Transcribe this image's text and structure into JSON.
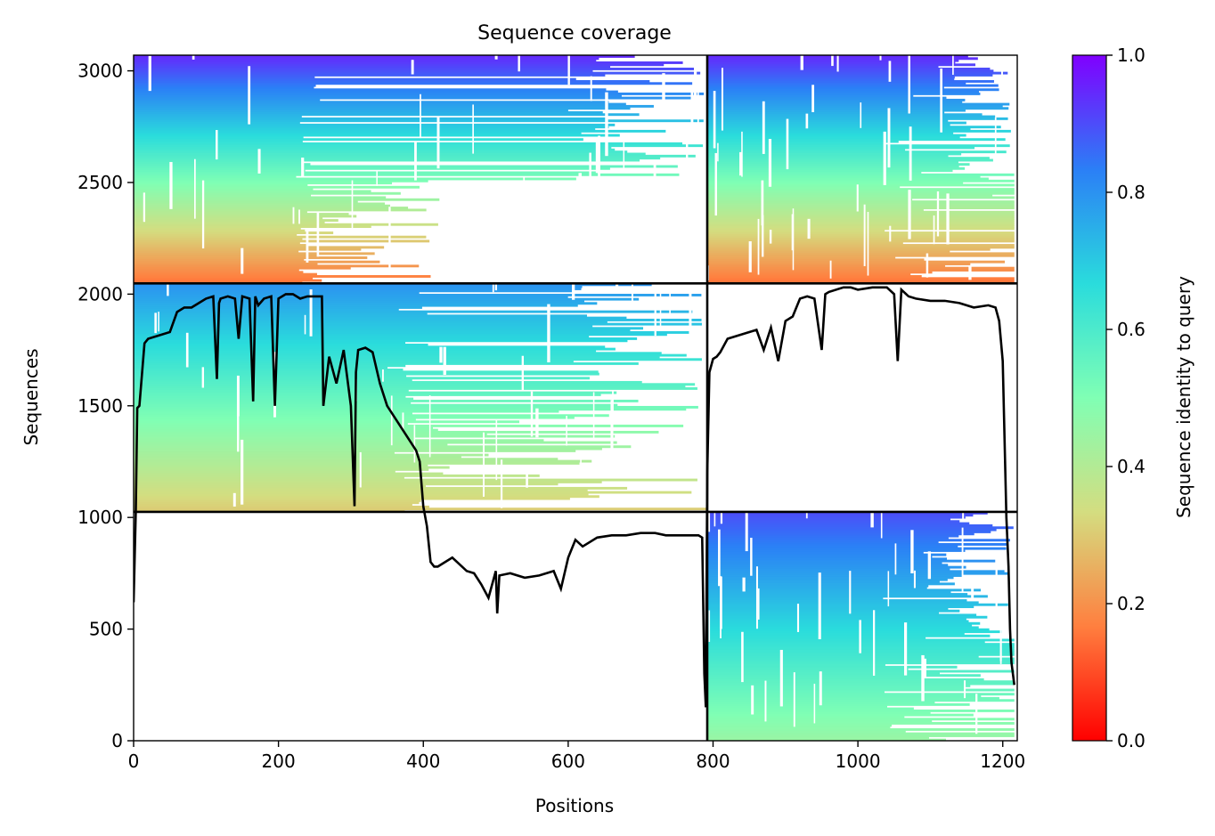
{
  "chart_data": {
    "type": "heatmap",
    "title": "Sequence coverage",
    "xlabel": "Positions",
    "ylabel": "Sequences",
    "xlim": [
      0,
      1220
    ],
    "ylim": [
      0,
      3070
    ],
    "x_ticks": [
      0,
      200,
      400,
      600,
      800,
      1000,
      1200
    ],
    "y_ticks": [
      0,
      500,
      1000,
      1500,
      2000,
      2500,
      3000
    ],
    "grid": false,
    "colorbar": {
      "label": "Sequence identity to query",
      "range": [
        0.0,
        1.0
      ],
      "ticks": [
        0.0,
        0.2,
        0.4,
        0.6,
        0.8,
        1.0
      ],
      "colormap": "rainbow_r",
      "colors": [
        "#ff0000",
        "#ff7f3f",
        "#d4dd80",
        "#80ffb4",
        "#2adcdc",
        "#2b7ff6",
        "#8000ff"
      ]
    },
    "chain_boundary_x": 792,
    "block_boundaries_y": [
      1025,
      2048
    ],
    "blocks": [
      {
        "y_range": [
          2048,
          3070
        ],
        "x_range": [
          0,
          792
        ],
        "identity_bottom": 0.15,
        "identity_top": 0.95,
        "dense_to_x": 260,
        "partial_to_x": 430
      },
      {
        "y_range": [
          2048,
          3070
        ],
        "x_range": [
          792,
          1216
        ],
        "identity_bottom": 0.15,
        "identity_top": 0.95,
        "dense_to_x": 1216,
        "partial_to_x": 1216
      },
      {
        "y_range": [
          1025,
          2048
        ],
        "x_range": [
          0,
          792
        ],
        "identity_bottom": 0.3,
        "identity_top": 0.8,
        "dense_to_x": 410,
        "partial_to_x": 792
      },
      {
        "y_range": [
          0,
          1025
        ],
        "x_range": [
          792,
          1216
        ],
        "identity_bottom": 0.45,
        "identity_top": 0.9,
        "dense_to_x": 1216,
        "partial_to_x": 1216
      }
    ],
    "coverage_line": {
      "x": [
        0,
        3,
        5,
        8,
        15,
        20,
        30,
        50,
        60,
        70,
        80,
        90,
        100,
        110,
        115,
        118,
        120,
        130,
        140,
        145,
        150,
        160,
        165,
        168,
        172,
        180,
        190,
        195,
        200,
        205,
        210,
        220,
        230,
        240,
        250,
        260,
        262,
        270,
        280,
        290,
        300,
        305,
        307,
        310,
        320,
        330,
        340,
        350,
        360,
        370,
        380,
        390,
        395,
        400,
        405,
        410,
        415,
        420,
        440,
        460,
        470,
        480,
        490,
        500,
        502,
        505,
        520,
        540,
        560,
        580,
        590,
        600,
        610,
        620,
        640,
        660,
        680,
        700,
        720,
        735,
        740,
        760,
        780,
        785,
        788,
        790,
        792,
        795,
        800,
        805,
        810,
        820,
        840,
        860,
        870,
        880,
        890,
        900,
        910,
        920,
        930,
        940,
        950,
        955,
        960,
        980,
        990,
        1000,
        1020,
        1040,
        1050,
        1055,
        1060,
        1070,
        1080,
        1100,
        1120,
        1140,
        1160,
        1180,
        1190,
        1195,
        1200,
        1205,
        1208,
        1210,
        1212,
        1216
      ],
      "y": [
        620,
        1020,
        1490,
        1500,
        1780,
        1800,
        1810,
        1830,
        1920,
        1940,
        1940,
        1960,
        1980,
        1990,
        1620,
        1960,
        1980,
        1990,
        1980,
        1800,
        1990,
        1980,
        1520,
        1990,
        1950,
        1980,
        1990,
        1500,
        1980,
        1990,
        2000,
        2000,
        1980,
        1990,
        1990,
        1990,
        1500,
        1720,
        1600,
        1750,
        1500,
        1050,
        1650,
        1750,
        1760,
        1740,
        1600,
        1500,
        1450,
        1400,
        1350,
        1300,
        1250,
        1050,
        960,
        800,
        780,
        780,
        820,
        760,
        750,
        700,
        640,
        760,
        570,
        740,
        750,
        730,
        740,
        760,
        680,
        820,
        900,
        870,
        910,
        920,
        920,
        930,
        930,
        920,
        920,
        920,
        920,
        910,
        300,
        150,
        1200,
        1650,
        1710,
        1720,
        1740,
        1800,
        1820,
        1840,
        1750,
        1850,
        1700,
        1880,
        1900,
        1980,
        1990,
        1980,
        1750,
        2000,
        2010,
        2030,
        2030,
        2020,
        2030,
        2030,
        2000,
        1700,
        2020,
        1990,
        1980,
        1970,
        1970,
        1960,
        1940,
        1950,
        1940,
        1880,
        1700,
        1000,
        780,
        500,
        350,
        250
      ]
    }
  }
}
